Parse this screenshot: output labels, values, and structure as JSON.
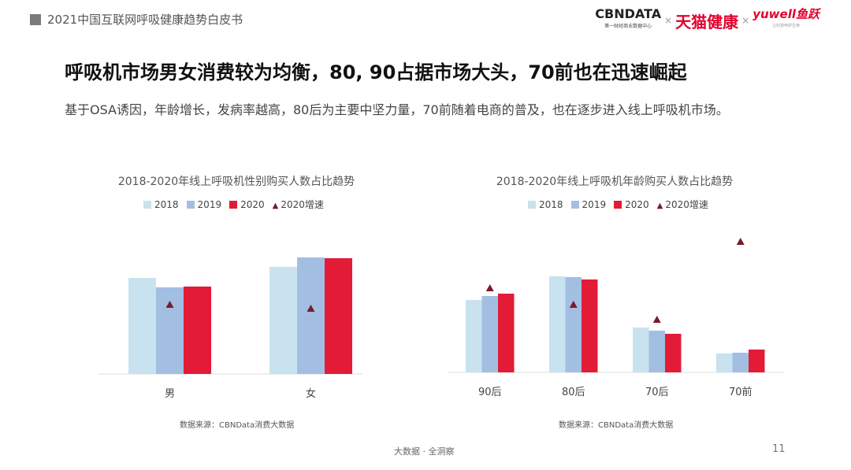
{
  "header": {
    "title": "2021中国互联网呼吸健康趋势白皮书",
    "logos": [
      "CBNDATA",
      "第一财经商业数据中心",
      "天猫健康",
      "yuwell鱼跃",
      "让科技呵护生命"
    ],
    "separator": "×"
  },
  "headline": "呼吸机市场男女消费较为均衡，80, 90占据市场大头，70前也在迅速崛起",
  "subtitle": "基于OSA诱因，年龄增长，发病率越高，80后为主要中坚力量，70前随着电商的普及，也在逐步进入线上呼吸机市场。",
  "colors": {
    "2018": "#c9e2ef",
    "2019": "#a2bfe2",
    "2020": "#e31b37",
    "growth": "#7b1a2c"
  },
  "chart_data": [
    {
      "type": "bar",
      "title": "2018-2020年线上呼吸机性别购买人数占比趋势",
      "categories": [
        "男",
        "女"
      ],
      "series": [
        {
          "name": "2018",
          "values": [
            122,
            136
          ]
        },
        {
          "name": "2019",
          "values": [
            110,
            148
          ]
        },
        {
          "name": "2020",
          "values": [
            111,
            147
          ]
        },
        {
          "name": "2020增速",
          "marker": "triangle",
          "values": [
            88,
            83
          ]
        }
      ],
      "ylim": [
        0,
        160
      ],
      "grid": false,
      "legend": "top",
      "source": "数据来源：CBNData消费大数据"
    },
    {
      "type": "bar",
      "title": "2018-2020年线上呼吸机年龄购买人数占比趋势",
      "categories": [
        "90后",
        "80后",
        "70后",
        "70前"
      ],
      "series": [
        {
          "name": "2018",
          "values": [
            92,
            122,
            57,
            24
          ]
        },
        {
          "name": "2019",
          "values": [
            97,
            121,
            53,
            25
          ]
        },
        {
          "name": "2020",
          "values": [
            100,
            118,
            49,
            29
          ]
        },
        {
          "name": "2020增速",
          "marker": "triangle",
          "values": [
            107,
            86,
            67,
            166
          ]
        }
      ],
      "ylim": [
        0,
        180
      ],
      "grid": false,
      "legend": "top",
      "source": "数据来源：CBNData消费大数据"
    }
  ],
  "footer": {
    "text": "大数据 · 全洞察",
    "page": "11"
  }
}
